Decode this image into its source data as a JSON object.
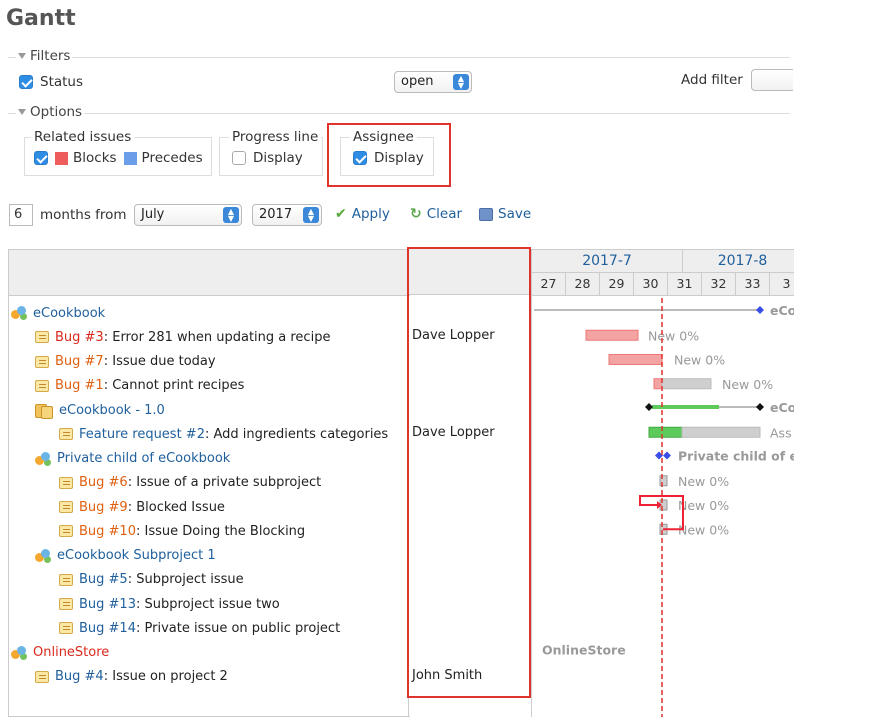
{
  "page": {
    "title": "Gantt"
  },
  "filters": {
    "legend": "Filters",
    "status_label": "Status",
    "status_operator": "open",
    "add_filter_label": "Add filter",
    "add_filter_value": ""
  },
  "options": {
    "legend": "Options",
    "related_issues": {
      "legend": "Related issues",
      "blocks": "Blocks",
      "precedes": "Precedes",
      "blocks_color": "#ef5c5c",
      "precedes_color": "#6b9ee8"
    },
    "progress_line": {
      "legend": "Progress line",
      "display": "Display"
    },
    "assignee": {
      "legend": "Assignee",
      "display": "Display"
    }
  },
  "toolbar": {
    "months": "6",
    "months_from": "months from",
    "month": "July",
    "year": "2017",
    "apply": "Apply",
    "clear": "Clear",
    "save": "Save"
  },
  "gantt": {
    "months": [
      "2017-7",
      "2017-8"
    ],
    "weeks": [
      "27",
      "28",
      "29",
      "30",
      "31",
      "32",
      "33",
      "3"
    ],
    "rows": [
      {
        "type": "project",
        "indent": 0,
        "prefix": "",
        "subject": "eCookbook",
        "assignee": ""
      },
      {
        "type": "issue",
        "indent": 1,
        "prefix": "Bug #3",
        "subject": ": Error 281 when updating a recipe",
        "assignee": "Dave Lopper",
        "prefix_color": "#d9291c"
      },
      {
        "type": "issue",
        "indent": 1,
        "prefix": "Bug #7",
        "subject": ": Issue due today",
        "assignee": "",
        "prefix_color": "#e06010"
      },
      {
        "type": "issue",
        "indent": 1,
        "prefix": "Bug #1",
        "subject": ": Cannot print recipes",
        "assignee": "",
        "prefix_color": "#e06010"
      },
      {
        "type": "version",
        "indent": 1,
        "prefix": "",
        "subject": "eCookbook - 1.0",
        "assignee": ""
      },
      {
        "type": "issue",
        "indent": 2,
        "prefix": "Feature request #2",
        "subject": ": Add ingredients categories",
        "assignee": "Dave Lopper",
        "prefix_color": "#1f5f9c"
      },
      {
        "type": "project",
        "indent": 1,
        "prefix": "",
        "subject": "Private child of eCookbook",
        "assignee": ""
      },
      {
        "type": "issue",
        "indent": 2,
        "prefix": "Bug #6",
        "subject": ": Issue of a private subproject",
        "assignee": "",
        "prefix_color": "#e06010"
      },
      {
        "type": "issue",
        "indent": 2,
        "prefix": "Bug #9",
        "subject": ": Blocked Issue",
        "assignee": "",
        "prefix_color": "#e06010"
      },
      {
        "type": "issue",
        "indent": 2,
        "prefix": "Bug #10",
        "subject": ": Issue Doing the Blocking",
        "assignee": "",
        "prefix_color": "#e06010"
      },
      {
        "type": "project",
        "indent": 1,
        "prefix": "",
        "subject": "eCookbook Subproject 1",
        "assignee": ""
      },
      {
        "type": "issue",
        "indent": 2,
        "prefix": "Bug #5",
        "subject": ": Subproject issue",
        "assignee": "",
        "prefix_color": "#1f5f9c"
      },
      {
        "type": "issue",
        "indent": 2,
        "prefix": "Bug #13",
        "subject": ": Subproject issue two",
        "assignee": "",
        "prefix_color": "#1f5f9c"
      },
      {
        "type": "issue",
        "indent": 2,
        "prefix": "Bug #14",
        "subject": ": Private issue on public project",
        "assignee": "",
        "prefix_color": "#1f5f9c"
      },
      {
        "type": "project",
        "indent": 0,
        "prefix": "",
        "subject": "OnlineStore",
        "assignee": "",
        "subject_color": "#d9291c"
      },
      {
        "type": "issue",
        "indent": 1,
        "prefix": "Bug #4",
        "subject": ": Issue on project 2",
        "assignee": "John Smith",
        "prefix_color": "#1f5f9c"
      }
    ],
    "bar_labels": {
      "ecookbook": "eCo",
      "bug3": "New 0%",
      "bug7": "New 0%",
      "bug1": "New 0%",
      "version": "eCo",
      "feature2": "Ass",
      "private_child": "Private child of e",
      "bug6": "New 0%",
      "bug9": "New 0%",
      "bug10": "New 0%",
      "onlinestore": "OnlineStore"
    },
    "colors": {
      "late": "#f4a3a3",
      "done": "#5ccb5c",
      "todo": "#cfcfcf",
      "today_line": "#e0332b",
      "milestone": "#3a4fe8"
    }
  }
}
